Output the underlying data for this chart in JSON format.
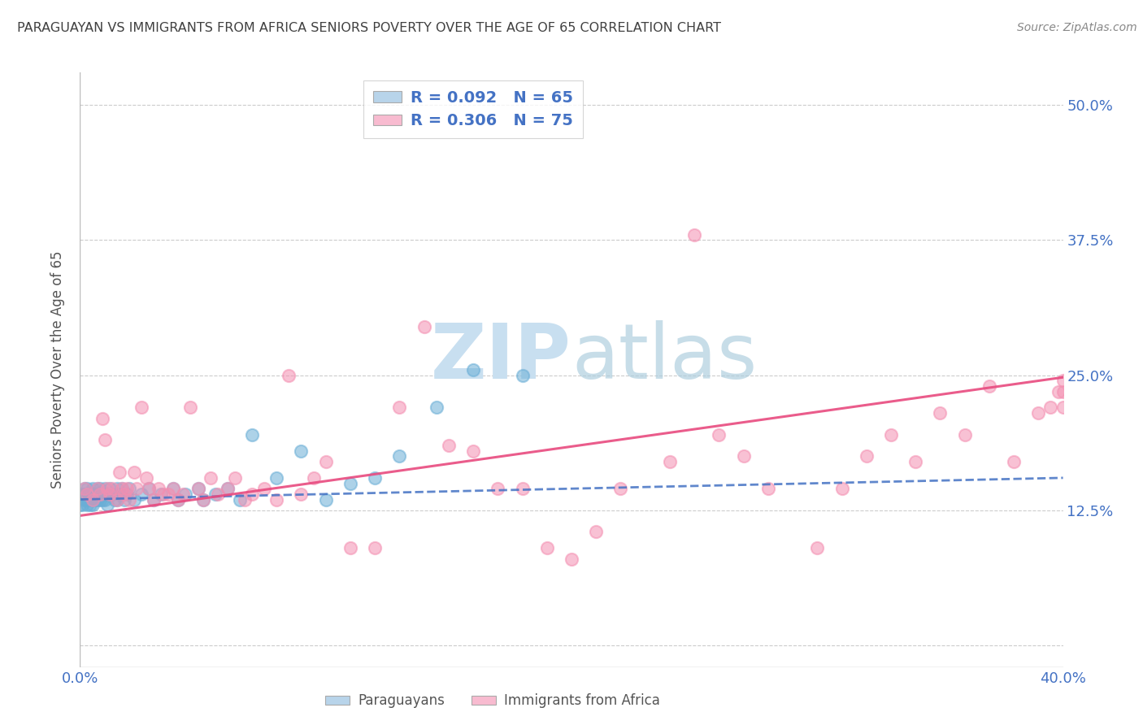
{
  "title": "PARAGUAYAN VS IMMIGRANTS FROM AFRICA SENIORS POVERTY OVER THE AGE OF 65 CORRELATION CHART",
  "source": "Source: ZipAtlas.com",
  "ylabel": "Seniors Poverty Over the Age of 65",
  "ytick_labels": [
    "",
    "12.5%",
    "25.0%",
    "37.5%",
    "50.0%"
  ],
  "ytick_positions": [
    0,
    0.125,
    0.25,
    0.375,
    0.5
  ],
  "xlim": [
    0.0,
    0.4
  ],
  "ylim": [
    -0.02,
    0.53
  ],
  "legend1_R": "R = 0.092",
  "legend1_N": "N = 65",
  "legend2_R": "R = 0.306",
  "legend2_N": "N = 75",
  "legend1_color": "#b8d4ea",
  "legend2_color": "#f8bbd0",
  "scatter1_color": "#6aaed6",
  "scatter2_color": "#f48fb1",
  "trend1_color": "#4472c4",
  "trend2_color": "#e84a7f",
  "watermark_zip": "ZIP",
  "watermark_atlas": "atlas",
  "watermark_color_zip": "#c8dff0",
  "watermark_color_atlas": "#9ecae1",
  "title_color": "#404040",
  "label_color": "#4472c4",
  "source_color": "#888888",
  "background_color": "#ffffff",
  "grid_color": "#cccccc",
  "paraguayan_x": [
    0.0,
    0.001,
    0.001,
    0.002,
    0.002,
    0.002,
    0.003,
    0.003,
    0.003,
    0.003,
    0.004,
    0.004,
    0.004,
    0.005,
    0.005,
    0.005,
    0.005,
    0.006,
    0.006,
    0.006,
    0.007,
    0.007,
    0.007,
    0.008,
    0.008,
    0.009,
    0.009,
    0.01,
    0.01,
    0.01,
    0.011,
    0.011,
    0.012,
    0.013,
    0.014,
    0.015,
    0.015,
    0.016,
    0.017,
    0.018,
    0.019,
    0.02,
    0.022,
    0.025,
    0.028,
    0.03,
    0.033,
    0.038,
    0.04,
    0.043,
    0.048,
    0.05,
    0.055,
    0.06,
    0.065,
    0.07,
    0.08,
    0.09,
    0.1,
    0.11,
    0.12,
    0.13,
    0.145,
    0.16,
    0.18
  ],
  "paraguayan_y": [
    0.13,
    0.14,
    0.13,
    0.145,
    0.135,
    0.14,
    0.14,
    0.135,
    0.13,
    0.145,
    0.14,
    0.135,
    0.13,
    0.14,
    0.145,
    0.135,
    0.13,
    0.14,
    0.14,
    0.135,
    0.145,
    0.135,
    0.14,
    0.145,
    0.135,
    0.14,
    0.135,
    0.14,
    0.145,
    0.135,
    0.14,
    0.13,
    0.145,
    0.14,
    0.135,
    0.145,
    0.135,
    0.14,
    0.145,
    0.135,
    0.14,
    0.145,
    0.135,
    0.14,
    0.145,
    0.135,
    0.14,
    0.145,
    0.135,
    0.14,
    0.145,
    0.135,
    0.14,
    0.145,
    0.135,
    0.195,
    0.155,
    0.18,
    0.135,
    0.15,
    0.155,
    0.175,
    0.22,
    0.255,
    0.25
  ],
  "africa_x": [
    0.002,
    0.003,
    0.005,
    0.007,
    0.008,
    0.009,
    0.01,
    0.011,
    0.012,
    0.013,
    0.015,
    0.016,
    0.017,
    0.018,
    0.019,
    0.02,
    0.022,
    0.023,
    0.025,
    0.027,
    0.028,
    0.03,
    0.032,
    0.034,
    0.036,
    0.038,
    0.04,
    0.042,
    0.045,
    0.048,
    0.05,
    0.053,
    0.056,
    0.06,
    0.063,
    0.067,
    0.07,
    0.075,
    0.08,
    0.085,
    0.09,
    0.095,
    0.1,
    0.11,
    0.12,
    0.13,
    0.14,
    0.15,
    0.16,
    0.17,
    0.18,
    0.19,
    0.2,
    0.21,
    0.22,
    0.24,
    0.25,
    0.26,
    0.27,
    0.28,
    0.3,
    0.31,
    0.32,
    0.33,
    0.34,
    0.35,
    0.36,
    0.37,
    0.38,
    0.39,
    0.395,
    0.398,
    0.4,
    0.4,
    0.4
  ],
  "africa_y": [
    0.145,
    0.14,
    0.135,
    0.145,
    0.14,
    0.21,
    0.19,
    0.145,
    0.14,
    0.145,
    0.135,
    0.16,
    0.145,
    0.14,
    0.145,
    0.135,
    0.16,
    0.145,
    0.22,
    0.155,
    0.145,
    0.135,
    0.145,
    0.14,
    0.14,
    0.145,
    0.135,
    0.14,
    0.22,
    0.145,
    0.135,
    0.155,
    0.14,
    0.145,
    0.155,
    0.135,
    0.14,
    0.145,
    0.135,
    0.25,
    0.14,
    0.155,
    0.17,
    0.09,
    0.09,
    0.22,
    0.295,
    0.185,
    0.18,
    0.145,
    0.145,
    0.09,
    0.08,
    0.105,
    0.145,
    0.17,
    0.38,
    0.195,
    0.175,
    0.145,
    0.09,
    0.145,
    0.175,
    0.195,
    0.17,
    0.215,
    0.195,
    0.24,
    0.17,
    0.215,
    0.22,
    0.235,
    0.22,
    0.235,
    0.245
  ],
  "trend1_x0": 0.0,
  "trend1_x1": 0.4,
  "trend1_y0": 0.135,
  "trend1_y1": 0.155,
  "trend2_x0": 0.0,
  "trend2_x1": 0.4,
  "trend2_y0": 0.12,
  "trend2_y1": 0.248
}
